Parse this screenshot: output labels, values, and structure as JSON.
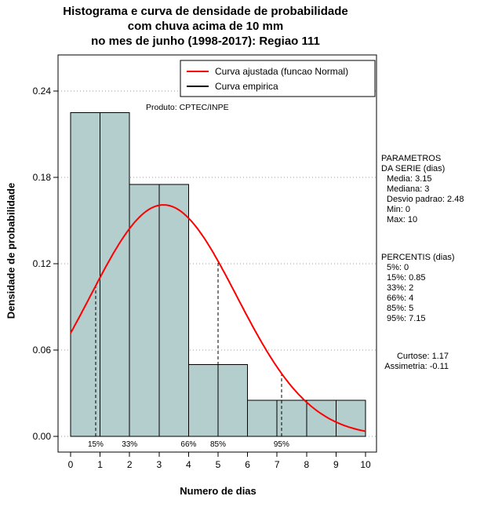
{
  "title": {
    "line1": "Histograma e curva de densidade de probabilidade",
    "line2": "com chuva acima de 10 mm",
    "line3": "no mes de junho (1998-2017): Regiao 111"
  },
  "annotations": {
    "product": "Produto: CPTEC/INPE"
  },
  "legend": {
    "items": [
      {
        "label": "Curva ajustada (funcao Normal)",
        "color": "#ff0000"
      },
      {
        "label": "Curva empirica",
        "color": "#000000"
      }
    ]
  },
  "side_panel": {
    "parameters_title_1": "PARAMETROS",
    "parameters_title_2": "DA SERIE (dias)",
    "parameters": [
      "Media: 3.15",
      "Mediana: 3",
      "Desvio padrao: 2.48",
      "Min: 0",
      "Max: 10"
    ],
    "percentiles_title": "PERCENTIS (dias)",
    "percentiles": [
      "5%: 0",
      "15%: 0.85",
      "33%: 2",
      "66%: 4",
      "85%: 5",
      "95%: 7.15"
    ],
    "moments": [
      "Curtose: 1.17",
      "Assimetria: -0.11"
    ]
  },
  "chart_data": {
    "type": "bar",
    "subtype": "histogram-with-density-curve",
    "title": "Histograma e curva de densidade de probabilidade com chuva acima de 10 mm no mes de junho (1998-2017): Regiao 111",
    "xlabel": "Numero de dias",
    "ylabel": "Densidade de probabilidade",
    "xlim": [
      0,
      10
    ],
    "ylim": [
      0,
      0.26
    ],
    "x_ticks": [
      0,
      1,
      2,
      3,
      4,
      5,
      6,
      7,
      8,
      9,
      10
    ],
    "y_ticks": [
      {
        "value": 0.0,
        "label": "0.00"
      },
      {
        "value": 0.06,
        "label": "0.06"
      },
      {
        "value": 0.12,
        "label": "0.12"
      },
      {
        "value": 0.18,
        "label": "0.18"
      },
      {
        "value": 0.24,
        "label": "0.24"
      }
    ],
    "grid": "horizontal-dotted-at-y-ticks",
    "grid_color": "#9b9b9b",
    "histogram": {
      "bin_edges": [
        0,
        1,
        2,
        3,
        4,
        5,
        6,
        7,
        8,
        9,
        10
      ],
      "densities": [
        0.225,
        0.225,
        0.175,
        0.175,
        0.05,
        0.05,
        0.025,
        0.025,
        0.025,
        0.025
      ],
      "fill": "#b4cdcd",
      "stroke": "#000000"
    },
    "normal_curve": {
      "label": "Curva ajustada (funcao Normal)",
      "mean": 3.15,
      "sd": 2.48,
      "color": "#ff0000"
    },
    "empirical_curve": {
      "label": "Curva empirica",
      "color": "#000000"
    },
    "percentile_lines": [
      {
        "label": "15%",
        "x": 0.85
      },
      {
        "label": "33%",
        "x": 2
      },
      {
        "label": "66%",
        "x": 4
      },
      {
        "label": "85%",
        "x": 5
      },
      {
        "label": "95%",
        "x": 7.15
      }
    ],
    "stats": {
      "media": 3.15,
      "mediana": 3,
      "desvio_padrao": 2.48,
      "min": 0,
      "max": 10,
      "curtose": 1.17,
      "assimetria": -0.11
    }
  }
}
